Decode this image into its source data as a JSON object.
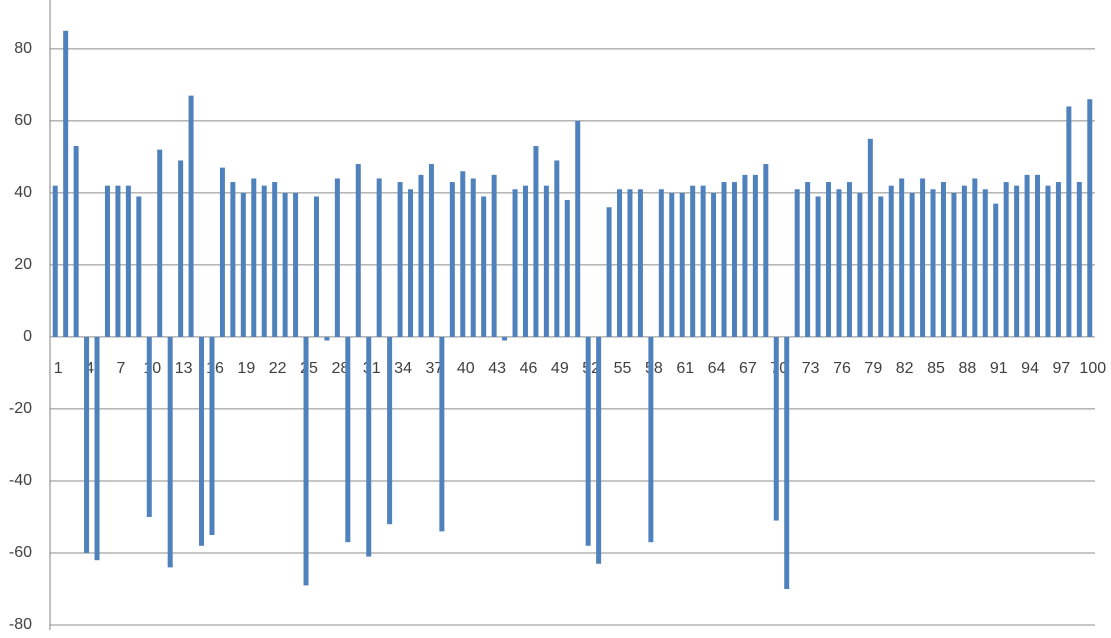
{
  "chart_data": {
    "type": "bar",
    "color": "#4f81bd",
    "grid": true,
    "categories": [
      "1",
      null,
      null,
      "4",
      null,
      null,
      "7",
      null,
      null,
      "10",
      null,
      null,
      "13",
      null,
      null,
      "16",
      null,
      null,
      "19",
      null,
      null,
      "22",
      null,
      null,
      "25",
      null,
      null,
      "28",
      null,
      null,
      "31",
      null,
      null,
      "34",
      null,
      null,
      "37",
      null,
      null,
      "40",
      null,
      null,
      "43",
      null,
      null,
      "46",
      null,
      null,
      "49",
      null,
      null,
      "52",
      null,
      null,
      "55",
      null,
      null,
      "58",
      null,
      null,
      "61",
      null,
      null,
      "64",
      null,
      null,
      "67",
      null,
      null,
      "70",
      null,
      null,
      "73",
      null,
      null,
      "76",
      null,
      null,
      "79",
      null,
      null,
      "82",
      null,
      null,
      "85",
      null,
      null,
      "88",
      null,
      null,
      "91",
      null,
      null,
      "94",
      null,
      null,
      "97",
      null,
      null,
      "100"
    ],
    "values": [
      42,
      85,
      53,
      -60,
      -62,
      42,
      42,
      42,
      39,
      -50,
      52,
      -64,
      49,
      67,
      -58,
      -55,
      47,
      43,
      40,
      44,
      42,
      43,
      40,
      40,
      -69,
      39,
      -1,
      44,
      -57,
      48,
      -61,
      44,
      -52,
      43,
      41,
      45,
      48,
      -54,
      43,
      46,
      44,
      39,
      45,
      -1,
      41,
      42,
      53,
      42,
      49,
      38,
      60,
      -58,
      -63,
      36,
      41,
      41,
      41,
      -57,
      41,
      40,
      40,
      42,
      42,
      40,
      43,
      43,
      45,
      45,
      48,
      -51,
      -70,
      41,
      43,
      39,
      43,
      41,
      43,
      40,
      55,
      39,
      42,
      44,
      40,
      44,
      41,
      43,
      40,
      42,
      44,
      41,
      37,
      43,
      42,
      45,
      45,
      42,
      43,
      64,
      43,
      66
    ],
    "ylim": [
      -80,
      93
    ],
    "yticks": [
      -80,
      -60,
      -40,
      -20,
      0,
      20,
      40,
      60,
      80
    ]
  }
}
